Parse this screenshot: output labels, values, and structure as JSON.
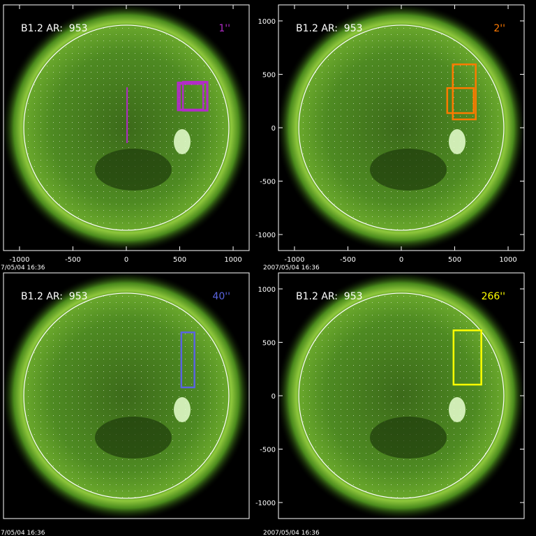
{
  "panels": [
    {
      "label": "B1.2 AR:  953",
      "tag": "1''",
      "color": "#b22cc8",
      "timestamp": "7/05/04 16:36",
      "xlim": [
        -1150,
        1150
      ],
      "ylim": [
        -1150,
        1150
      ],
      "xticks": [
        -1000,
        -500,
        0,
        500,
        1000
      ],
      "boxes": [
        {
          "x": [
            482,
            756
          ],
          "y": [
            163,
            423
          ]
        },
        {
          "x": [
            500,
            720
          ],
          "y": [
            170,
            410
          ]
        },
        {
          "x": [
            530,
            760
          ],
          "y": [
            160,
            430
          ]
        }
      ]
    },
    {
      "label": "B1.2 AR:  953",
      "tag": "2''",
      "color": "#ff7a00",
      "timestamp": "2007/05/04 16:36",
      "xlim": [
        -1150,
        1150
      ],
      "ylim": [
        -1150,
        1150
      ],
      "xticks": [
        -1000,
        -500,
        0,
        500,
        1000
      ],
      "yticks": [
        -1000,
        -500,
        0,
        500,
        1000
      ],
      "boxes": [
        {
          "x": [
            482,
            697
          ],
          "y": [
            78,
            593
          ]
        },
        {
          "x": [
            430,
            678
          ],
          "y": [
            137,
            371
          ]
        }
      ]
    },
    {
      "label": "B1.2 AR:  953",
      "tag": "40''",
      "color": "#5a64e0",
      "timestamp": "7/05/04 16:36",
      "xlim": [
        -1150,
        1150
      ],
      "ylim": [
        -1150,
        1150
      ],
      "boxes": [
        {
          "x": [
            515,
            638
          ],
          "y": [
            78,
            593
          ]
        }
      ]
    },
    {
      "label": "B1.2 AR:  953",
      "tag": "266''",
      "color": "#ffff00",
      "timestamp": "2007/05/04 16:36",
      "xlim": [
        -1150,
        1150
      ],
      "ylim": [
        -1150,
        1150
      ],
      "yticks": [
        -1000,
        -500,
        0,
        500,
        1000
      ],
      "boxes": [
        {
          "x": [
            489,
            749
          ],
          "y": [
            104,
            612
          ]
        }
      ]
    }
  ]
}
